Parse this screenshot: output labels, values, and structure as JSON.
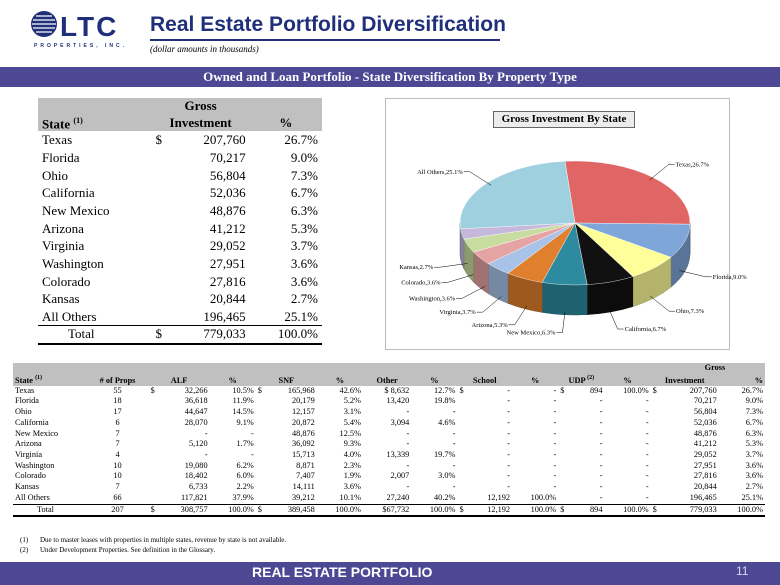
{
  "header": {
    "logo_text": "LTC",
    "logo_subtext": "PROPERTIES, INC.",
    "title": "Real Estate Portfolio Diversification",
    "subtitle": "(dollar amounts in thousands)"
  },
  "band_title": "Owned and Loan Portfolio - State Diversification  By Property Type",
  "summary": {
    "headers": {
      "state": "State",
      "state_sup": "(1)",
      "gross": "Gross",
      "investment": "Investment",
      "pct": "%"
    },
    "rows": [
      {
        "state": "Texas",
        "dollar": "$",
        "value": "207,760",
        "pct": "26.7%"
      },
      {
        "state": "Florida",
        "dollar": "",
        "value": "70,217",
        "pct": "9.0%"
      },
      {
        "state": "Ohio",
        "dollar": "",
        "value": "56,804",
        "pct": "7.3%"
      },
      {
        "state": "California",
        "dollar": "",
        "value": "52,036",
        "pct": "6.7%"
      },
      {
        "state": "New Mexico",
        "dollar": "",
        "value": "48,876",
        "pct": "6.3%"
      },
      {
        "state": "Arizona",
        "dollar": "",
        "value": "41,212",
        "pct": "5.3%"
      },
      {
        "state": "Virginia",
        "dollar": "",
        "value": "29,052",
        "pct": "3.7%"
      },
      {
        "state": "Washington",
        "dollar": "",
        "value": "27,951",
        "pct": "3.6%"
      },
      {
        "state": "Colorado",
        "dollar": "",
        "value": "27,816",
        "pct": "3.6%"
      },
      {
        "state": "Kansas",
        "dollar": "",
        "value": "20,844",
        "pct": "2.7%"
      },
      {
        "state": "All Others",
        "dollar": "",
        "value": "196,465",
        "pct": "25.1%"
      }
    ],
    "total": {
      "label": "Total",
      "dollar": "$",
      "value": "779,033",
      "pct": "100.0%"
    }
  },
  "chart_data": {
    "type": "pie",
    "title": "Gross Investment By State",
    "slices": [
      {
        "label": "Texas",
        "display": "Texas,26.7%",
        "value": 26.7,
        "color": "#e06666"
      },
      {
        "label": "Florida",
        "display": "Florida,9.0%",
        "value": 9.0,
        "color": "#7ea6d8"
      },
      {
        "label": "Ohio",
        "display": "Ohio,7.3%",
        "value": 7.3,
        "color": "#ffff99"
      },
      {
        "label": "California",
        "display": "California,6.7%",
        "value": 6.7,
        "color": "#111111"
      },
      {
        "label": "New Mexico",
        "display": "New Mexico,6.3%",
        "value": 6.3,
        "color": "#2e8a9e"
      },
      {
        "label": "Arizona",
        "display": "Arizona,5.3%",
        "value": 5.3,
        "color": "#e07f2d"
      },
      {
        "label": "Virginia",
        "display": "Virginia,3.7%",
        "value": 3.7,
        "color": "#a9c3e8"
      },
      {
        "label": "Washington",
        "display": "Washington,3.6%",
        "value": 3.6,
        "color": "#e6a3a3"
      },
      {
        "label": "Colorado",
        "display": "Colorado,3.6%",
        "value": 3.6,
        "color": "#c8dca0"
      },
      {
        "label": "Kansas",
        "display": "Kansas,2.7%",
        "value": 2.7,
        "color": "#c5b8da"
      },
      {
        "label": "All Others",
        "display": "All Others,25.1%",
        "value": 25.1,
        "color": "#9ed0e0"
      }
    ]
  },
  "detail": {
    "headers": {
      "state": "State",
      "state_sup": "(1)",
      "props": "# of Props",
      "alf": "ALF",
      "pct": "%",
      "snf": "SNF",
      "other": "Other",
      "school": "School",
      "udp": "UDP",
      "udp_sup": "(2)",
      "gross": "Gross",
      "investment": "Investment"
    },
    "rows": [
      [
        "Texas",
        "55",
        "$",
        "32,266",
        "10.5%",
        "$",
        "165,968",
        "42.6%",
        "$  8,632",
        "12.7%",
        "$",
        "-",
        "-",
        "$",
        "894",
        "100.0%",
        "$",
        "207,760",
        "26.7%"
      ],
      [
        "Florida",
        "18",
        "",
        "36,618",
        "11.9%",
        "",
        "20,179",
        "5.2%",
        "13,420",
        "19.8%",
        "",
        "-",
        "-",
        "",
        "-",
        "-",
        "",
        "70,217",
        "9.0%"
      ],
      [
        "Ohio",
        "17",
        "",
        "44,647",
        "14.5%",
        "",
        "12,157",
        "3.1%",
        "-",
        "-",
        "",
        "-",
        "-",
        "",
        "-",
        "-",
        "",
        "56,804",
        "7.3%"
      ],
      [
        "California",
        "6",
        "",
        "28,070",
        "9.1%",
        "",
        "20,872",
        "5.4%",
        "3,094",
        "4.6%",
        "",
        "-",
        "-",
        "",
        "-",
        "-",
        "",
        "52,036",
        "6.7%"
      ],
      [
        "New Mexico",
        "7",
        "",
        "-",
        "-",
        "",
        "48,876",
        "12.5%",
        "-",
        "-",
        "",
        "-",
        "-",
        "",
        "-",
        "-",
        "",
        "48,876",
        "6.3%"
      ],
      [
        "Arizona",
        "7",
        "",
        "5,120",
        "1.7%",
        "",
        "36,092",
        "9.3%",
        "-",
        "-",
        "",
        "-",
        "-",
        "",
        "-",
        "-",
        "",
        "41,212",
        "5.3%"
      ],
      [
        "Virginia",
        "4",
        "",
        "-",
        "-",
        "",
        "15,713",
        "4.0%",
        "13,339",
        "19.7%",
        "",
        "-",
        "-",
        "",
        "-",
        "-",
        "",
        "29,052",
        "3.7%"
      ],
      [
        "Washington",
        "10",
        "",
        "19,080",
        "6.2%",
        "",
        "8,871",
        "2.3%",
        "-",
        "-",
        "",
        "-",
        "-",
        "",
        "-",
        "-",
        "",
        "27,951",
        "3.6%"
      ],
      [
        "Colorado",
        "10",
        "",
        "18,402",
        "6.0%",
        "",
        "7,407",
        "1.9%",
        "2,007",
        "3.0%",
        "",
        "-",
        "-",
        "",
        "-",
        "-",
        "",
        "27,816",
        "3.6%"
      ],
      [
        "Kansas",
        "7",
        "",
        "6,733",
        "2.2%",
        "",
        "14,111",
        "3.6%",
        "-",
        "-",
        "",
        "-",
        "-",
        "",
        "-",
        "-",
        "",
        "20,844",
        "2.7%"
      ],
      [
        "All Others",
        "66",
        "",
        "117,821",
        "37.9%",
        "",
        "39,212",
        "10.1%",
        "27,240",
        "40.2%",
        "",
        "12,192",
        "100.0%",
        "",
        "-",
        "-",
        "",
        "196,465",
        "25.1%"
      ]
    ],
    "total": [
      "Total",
      "207",
      "$",
      "308,757",
      "100.0%",
      "$",
      "389,458",
      "100.0%",
      "$67,732",
      "100.0%",
      "$",
      "12,192",
      "100.0%",
      "$",
      "894",
      "100.0%",
      "$",
      "779,033",
      "100.0%"
    ]
  },
  "notes": [
    {
      "num": "(1)",
      "text": "Due to master leases with properties in multiple states, revenue by state is not available."
    },
    {
      "num": "(2)",
      "text": "Under Development Properties.  See definition in the Glossary."
    }
  ],
  "footer": {
    "section": "REAL ESTATE PORTFOLIO",
    "page": "11"
  }
}
